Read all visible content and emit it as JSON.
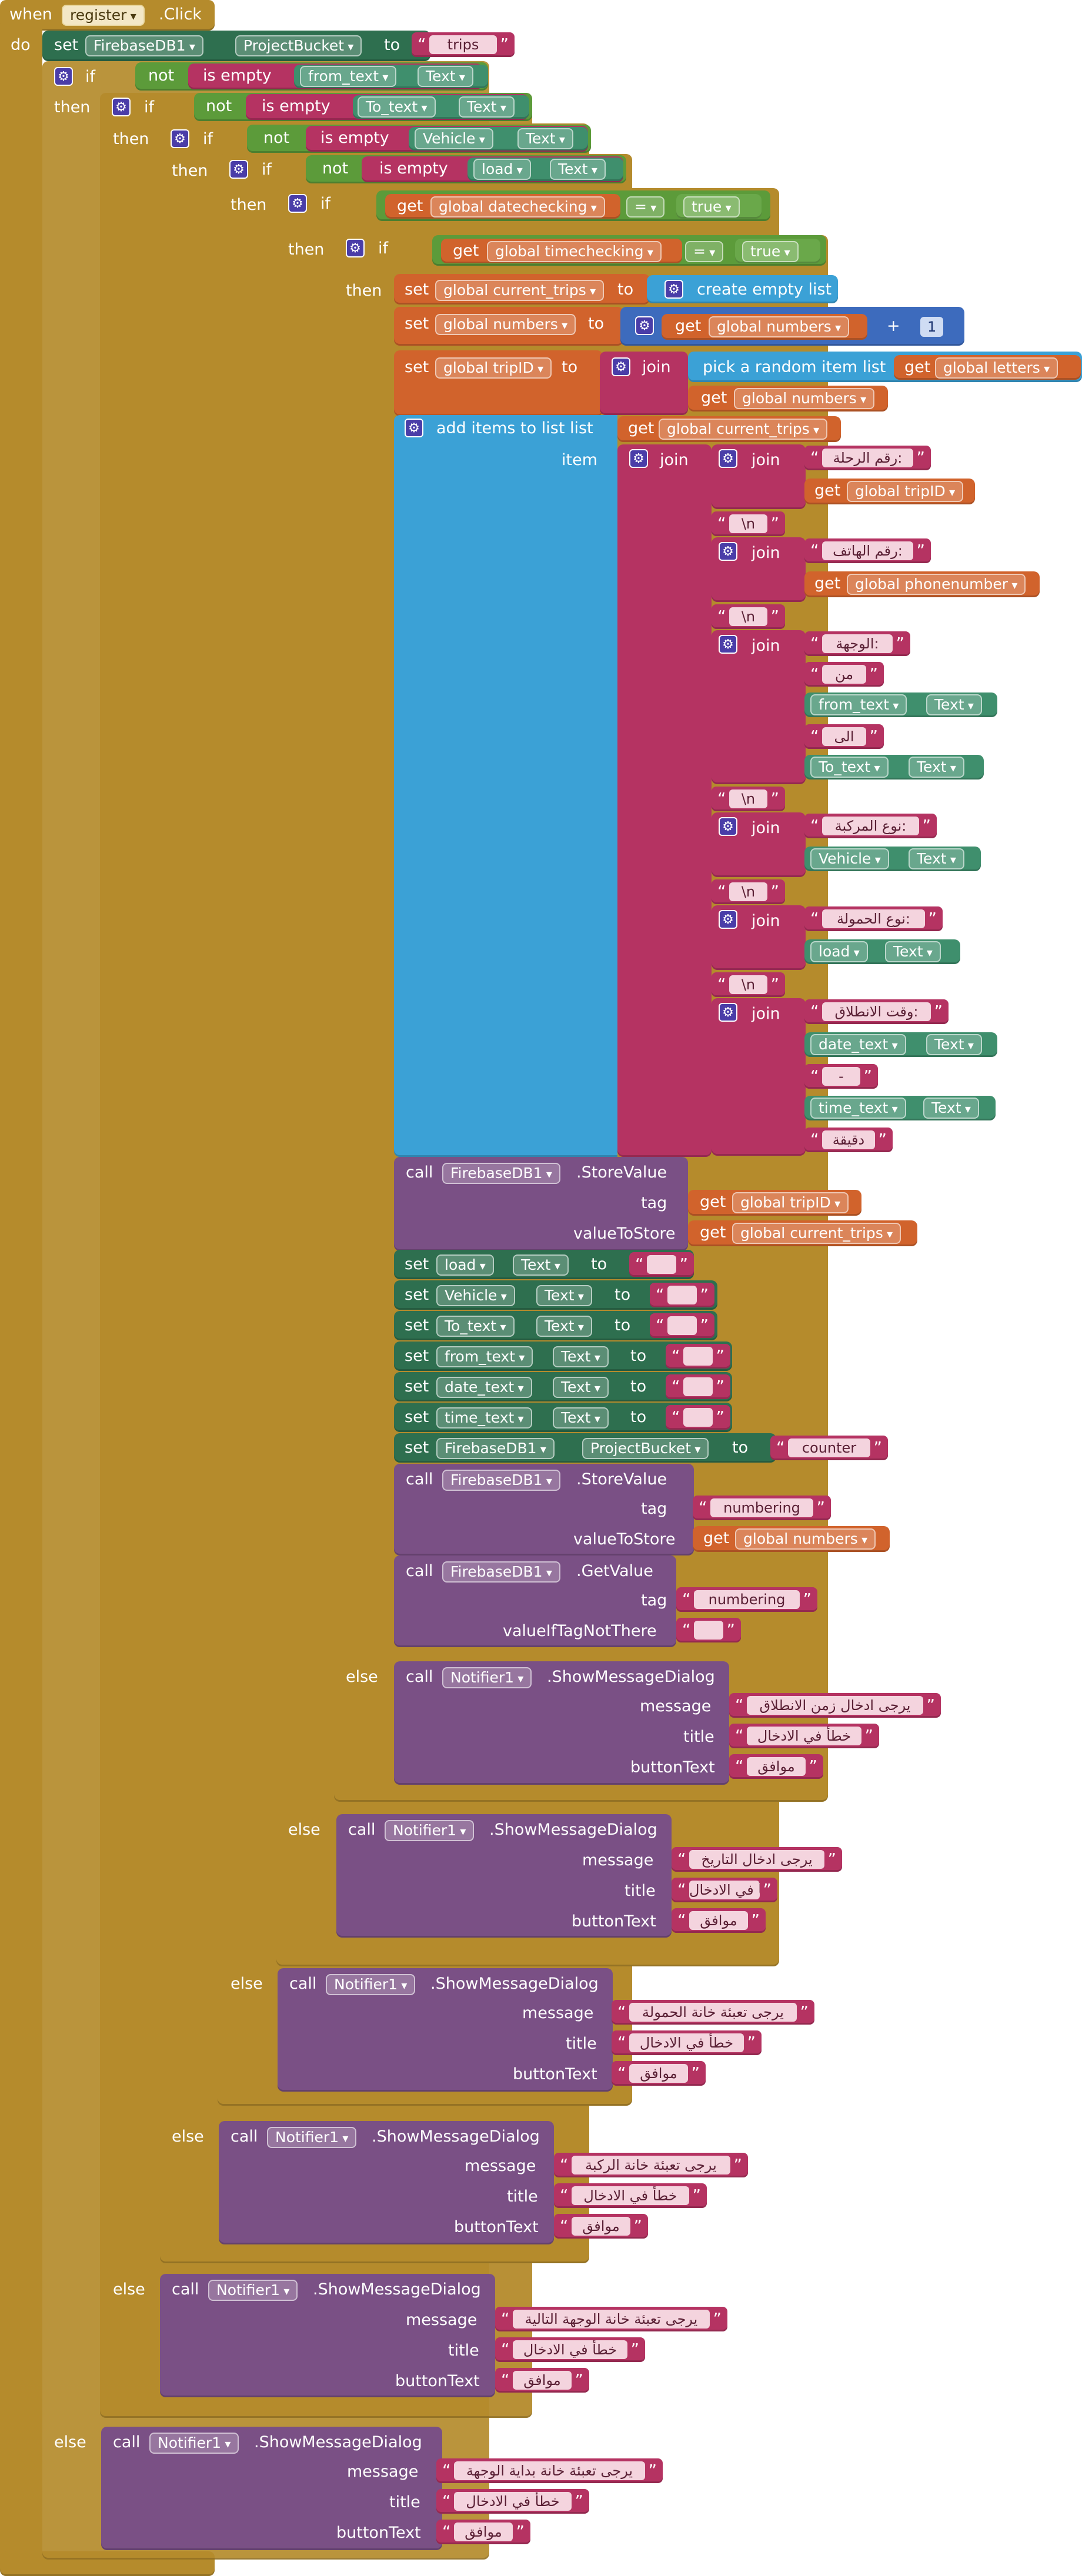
{
  "event": {
    "when": "when",
    "component": "register",
    "method": ".Click",
    "do": "do"
  },
  "kw": {
    "set": "set",
    "to": "to",
    "if": "if",
    "then": "then",
    "else": "else",
    "not": "not",
    "is_empty": "is empty",
    "get": "get",
    "join": "join",
    "call": "call",
    "text": "Text",
    "tag": "tag",
    "valueToStore": "valueToStore",
    "valueIfTagNotThere": "valueIfTagNotThere",
    "message": "message",
    "title": "title",
    "buttonText": "buttonText",
    "eq": "=",
    "plus": "+",
    "item": "item",
    "list": "list",
    "true": "true"
  },
  "components": {
    "firebase": "FirebaseDB1",
    "project_bucket": "ProjectBucket",
    "from_text": "from_text",
    "to_text": "To_text",
    "vehicle": "Vehicle",
    "load": "load",
    "date_text": "date_text",
    "time_text": "time_text",
    "notifier": "Notifier1"
  },
  "methods": {
    "store_value": ".StoreValue",
    "get_value": ".GetValue",
    "show_message": ".ShowMessageDialog"
  },
  "globals": {
    "datechecking": "global datechecking",
    "timechecking": "global timechecking",
    "current_trips": "global current_trips",
    "numbers": "global numbers",
    "tripID": "global tripID",
    "letters": "global letters",
    "phonenumber": "global phonenumber"
  },
  "blocks": {
    "create_empty_list": "create empty list",
    "pick_random": "pick a random item  list",
    "add_items": "add items to list  list",
    "one": "1"
  },
  "strings": {
    "trips": "trips",
    "trip_no": "رقم الرحلة:",
    "newline": "\\n",
    "phone": "رقم الهاتف:",
    "destination": "الوجهة:",
    "from": "من",
    "to_word": "الى",
    "vehicle_type": "نوع المركبة:",
    "load_type": "نوع الحمولة:",
    "departure": "وقت الانطلاق:",
    "dash": "-",
    "minute": "دقيقة",
    "empty": "",
    "counter": "counter",
    "numbering": "numbering",
    "msg_time": "يرجى ادخال زمن الانطلاق",
    "err_title": "خطأ في الادخال",
    "ok": "موافق",
    "msg_date": "يرجى ادخال التاريخ",
    "msg_load": "يرجى تعبئة خانة الحمولة",
    "msg_vehicle": "يرجى تعبئة خانة الركبة",
    "msg_dest": "يرجى تعبئة خانة الوجهة التالية",
    "msg_start": "يرجى تعبئة خانة بداية الوجهة"
  },
  "colors": {
    "event": "#b58b2c",
    "set": "#2e6f4f",
    "logic": "#5c9b3a",
    "text": "#b53362",
    "variable": "#d1632c",
    "list": "#3ba1d6",
    "procedure_call": "#7a5085",
    "math": "#3d6bbd"
  }
}
